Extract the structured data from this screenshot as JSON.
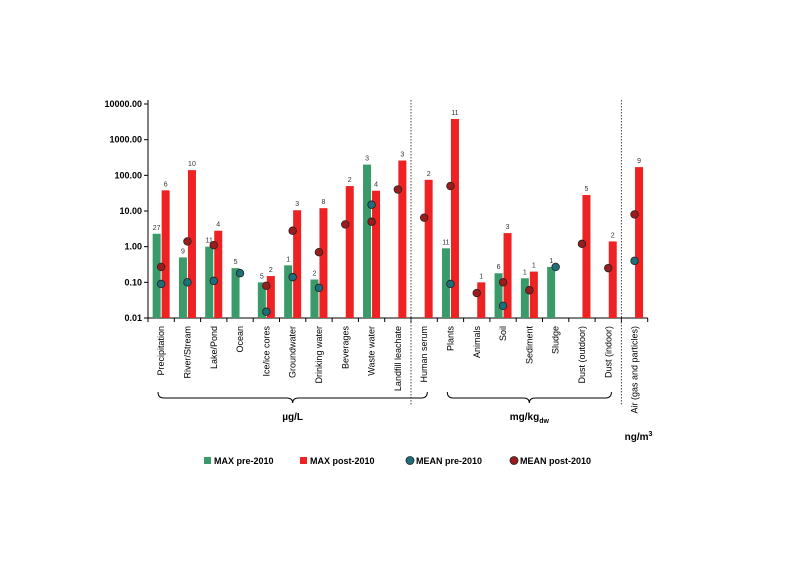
{
  "chart_data": {
    "type": "bar",
    "y_scale": "log",
    "ylim": [
      0.01,
      10000
    ],
    "y_ticks": [
      "10000.00",
      "1000.00",
      "100.00",
      "10.00",
      "1.00",
      "0.10",
      "0.01"
    ],
    "categories": [
      "Precipitation",
      "River/Stream",
      "Lake/Pond",
      "Ocean",
      "Ice/ice cores",
      "Groundwater",
      "Drinking water",
      "Beverages",
      "Waste water",
      "Landfill leachate",
      "Human serum",
      "Plants",
      "Animals",
      "Soil",
      "Sediment",
      "Sludge",
      "Dust (outdoor)",
      "Dust (indoor)",
      "Air (gas and particles)"
    ],
    "series": [
      {
        "name": "MAX pre-2010",
        "kind": "bar",
        "color": "#3a9a6a",
        "values": [
          2.3,
          0.5,
          1.0,
          0.25,
          0.1,
          0.3,
          0.12,
          null,
          200,
          null,
          null,
          0.9,
          null,
          0.18,
          0.13,
          0.27,
          null,
          null,
          null
        ],
        "counts": [
          "27",
          "9",
          "11",
          "5",
          "5",
          "1",
          "2",
          null,
          "3",
          null,
          null,
          "11",
          null,
          "6",
          "1",
          "1",
          null,
          null,
          null
        ]
      },
      {
        "name": "MAX post-2010",
        "kind": "bar",
        "color": "#ee2222",
        "values": [
          38,
          140,
          2.8,
          null,
          0.15,
          10.5,
          12,
          50,
          37,
          260,
          75,
          3800,
          0.1,
          2.4,
          0.2,
          null,
          28,
          1.4,
          170
        ],
        "counts": [
          "6",
          "10",
          "4",
          null,
          "2",
          "3",
          "8",
          "2",
          "4",
          "3",
          "2",
          "11",
          "1",
          "3",
          "1",
          null,
          "5",
          "2",
          "9"
        ]
      },
      {
        "name": "MEAN pre-2010",
        "kind": "point",
        "color": "#1f6f7a",
        "values": [
          0.09,
          0.1,
          0.11,
          0.18,
          0.015,
          0.14,
          0.07,
          null,
          15,
          null,
          null,
          0.09,
          null,
          0.022,
          null,
          0.27,
          null,
          null,
          0.4
        ]
      },
      {
        "name": "MEAN post-2010",
        "kind": "point",
        "color": "#9b1c1c",
        "values": [
          0.27,
          1.4,
          1.1,
          null,
          0.08,
          2.8,
          0.7,
          4.2,
          5,
          40,
          6.5,
          50,
          0.05,
          0.1,
          0.06,
          null,
          1.2,
          0.25,
          8
        ]
      }
    ],
    "groups": [
      {
        "label": "µg/L",
        "sub": "",
        "from": 0,
        "to": 10
      },
      {
        "label": "mg/kg",
        "sub": "dw",
        "from": 11,
        "to": 17
      },
      {
        "label": "ng/m",
        "sup": "3",
        "from": 18,
        "to": 18
      }
    ],
    "separators_after": [
      9,
      17
    ],
    "grid": false,
    "legend_position": "bottom"
  }
}
